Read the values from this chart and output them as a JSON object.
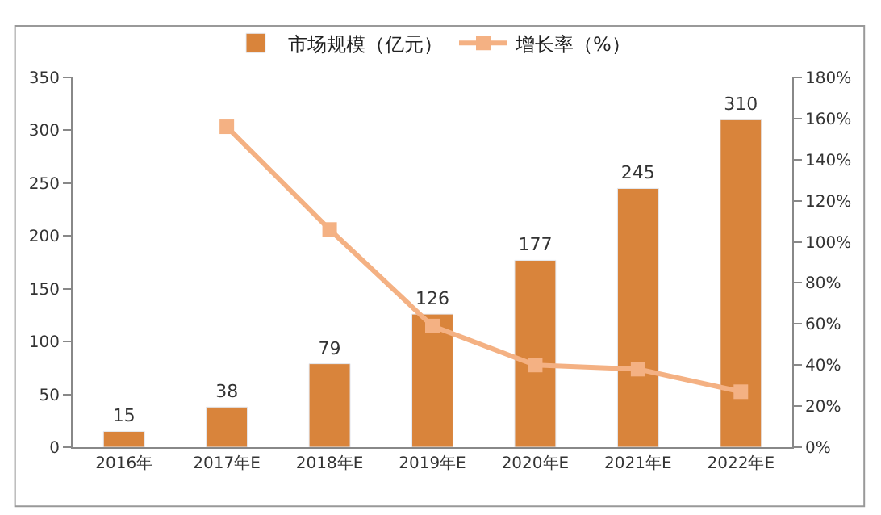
{
  "chart_data": {
    "type": "bar",
    "categories": [
      "2016年",
      "2017年E",
      "2018年E",
      "2019年E",
      "2020年E",
      "2021年E",
      "2022年E"
    ],
    "series": [
      {
        "name": "市场规模（亿元）",
        "color": "#d9843b",
        "values": [
          15,
          38,
          79,
          126,
          177,
          245,
          310
        ],
        "data_labels": true
      },
      {
        "name": "增长率（%）",
        "type": "line",
        "axis": "y2",
        "color": "#f4b183",
        "marker": "square",
        "values": [
          null,
          156,
          106,
          59,
          40,
          38,
          27
        ]
      }
    ],
    "ylim": [
      0,
      350
    ],
    "yticks": [
      0,
      50,
      100,
      150,
      200,
      250,
      300,
      350
    ],
    "y2lim": [
      0,
      180
    ],
    "y2ticks": [
      {
        "value": 0,
        "label": "0%"
      },
      {
        "value": 20,
        "label": "20%"
      },
      {
        "value": 40,
        "label": "40%"
      },
      {
        "value": 60,
        "label": "60%"
      },
      {
        "value": 80,
        "label": "80%"
      },
      {
        "value": 100,
        "label": "100%"
      },
      {
        "value": 120,
        "label": "120%"
      },
      {
        "value": 140,
        "label": "140%"
      },
      {
        "value": 160,
        "label": "160%"
      },
      {
        "value": 180,
        "label": "180%"
      }
    ],
    "grid": false,
    "legend": "top"
  }
}
